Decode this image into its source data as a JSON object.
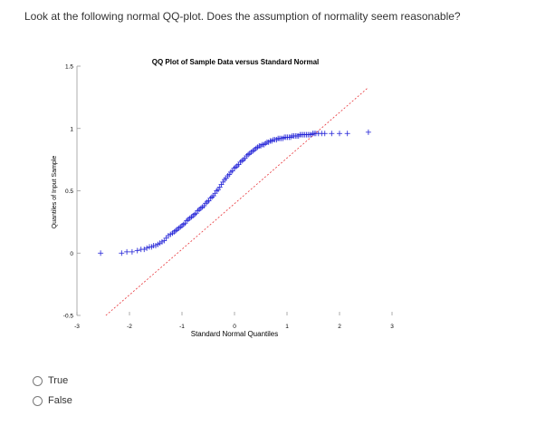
{
  "question": {
    "text": "Look at the following normal QQ-plot. Does the assumption of normality seem reasonable?"
  },
  "options": [
    {
      "label": "True",
      "selected": false
    },
    {
      "label": "False",
      "selected": false
    }
  ],
  "chart_data": {
    "type": "scatter",
    "title": "QQ Plot of Sample Data versus Standard Normal",
    "xlabel": "Standard Normal Quantiles",
    "ylabel": "Quantiles of Input Sample",
    "xlim": [
      -3,
      3
    ],
    "ylim": [
      -0.5,
      1.5
    ],
    "xticks": [
      "-3",
      "-2",
      "-1",
      "0",
      "1",
      "2",
      "3"
    ],
    "yticks": [
      "-0.5",
      "0",
      "0.5",
      "1",
      "1.5"
    ],
    "marker": "+",
    "marker_color": "#1f1fd6",
    "reference_line_color": "#e8363b",
    "reference_line": {
      "x": [
        -2.45,
        2.55
      ],
      "y": [
        -0.5,
        1.33
      ]
    },
    "series": [
      {
        "x": [
          -2.55,
          -2.15,
          -2.05,
          -1.95,
          -1.85,
          -1.78,
          -1.72,
          -1.67,
          -1.62,
          -1.58,
          -1.54,
          -1.5,
          -1.46,
          -1.42,
          -1.38,
          -1.34,
          -1.3,
          -1.26,
          -1.22,
          -1.18,
          -1.15,
          -1.12,
          -1.09,
          -1.06,
          -1.03,
          -1.0,
          -0.97,
          -0.94,
          -0.91,
          -0.88,
          -0.85,
          -0.82,
          -0.79,
          -0.76,
          -0.73,
          -0.7,
          -0.67,
          -0.64,
          -0.61,
          -0.58,
          -0.55,
          -0.52,
          -0.49,
          -0.46,
          -0.43,
          -0.4,
          -0.37,
          -0.34,
          -0.31,
          -0.28,
          -0.25,
          -0.22,
          -0.19,
          -0.16,
          -0.13,
          -0.1,
          -0.07,
          -0.04,
          -0.01,
          0.02,
          0.05,
          0.08,
          0.11,
          0.14,
          0.17,
          0.2,
          0.23,
          0.26,
          0.29,
          0.32,
          0.35,
          0.38,
          0.41,
          0.44,
          0.47,
          0.5,
          0.53,
          0.56,
          0.59,
          0.62,
          0.65,
          0.68,
          0.71,
          0.74,
          0.77,
          0.8,
          0.83,
          0.86,
          0.89,
          0.92,
          0.95,
          0.98,
          1.01,
          1.04,
          1.07,
          1.1,
          1.13,
          1.16,
          1.19,
          1.22,
          1.25,
          1.28,
          1.31,
          1.34,
          1.37,
          1.4,
          1.43,
          1.46,
          1.49,
          1.52,
          1.55,
          1.6,
          1.66,
          1.72,
          1.85,
          2.0,
          2.15,
          2.55
        ],
        "y": [
          0.0,
          0.0,
          0.01,
          0.01,
          0.02,
          0.03,
          0.03,
          0.04,
          0.05,
          0.05,
          0.06,
          0.06,
          0.07,
          0.08,
          0.09,
          0.1,
          0.12,
          0.14,
          0.15,
          0.16,
          0.17,
          0.18,
          0.19,
          0.2,
          0.21,
          0.22,
          0.23,
          0.24,
          0.26,
          0.27,
          0.28,
          0.29,
          0.3,
          0.31,
          0.32,
          0.34,
          0.35,
          0.36,
          0.37,
          0.38,
          0.4,
          0.41,
          0.42,
          0.44,
          0.45,
          0.46,
          0.48,
          0.5,
          0.51,
          0.53,
          0.55,
          0.57,
          0.59,
          0.6,
          0.62,
          0.63,
          0.65,
          0.66,
          0.68,
          0.69,
          0.7,
          0.71,
          0.73,
          0.74,
          0.75,
          0.76,
          0.78,
          0.79,
          0.8,
          0.81,
          0.82,
          0.83,
          0.84,
          0.85,
          0.86,
          0.86,
          0.87,
          0.87,
          0.88,
          0.89,
          0.89,
          0.9,
          0.9,
          0.91,
          0.91,
          0.91,
          0.92,
          0.92,
          0.92,
          0.92,
          0.93,
          0.93,
          0.93,
          0.93,
          0.93,
          0.94,
          0.94,
          0.94,
          0.94,
          0.94,
          0.95,
          0.95,
          0.95,
          0.95,
          0.95,
          0.95,
          0.95,
          0.95,
          0.96,
          0.96,
          0.96,
          0.96,
          0.96,
          0.96,
          0.96,
          0.96,
          0.96,
          0.97
        ]
      }
    ],
    "grid": false,
    "legend": "none"
  }
}
